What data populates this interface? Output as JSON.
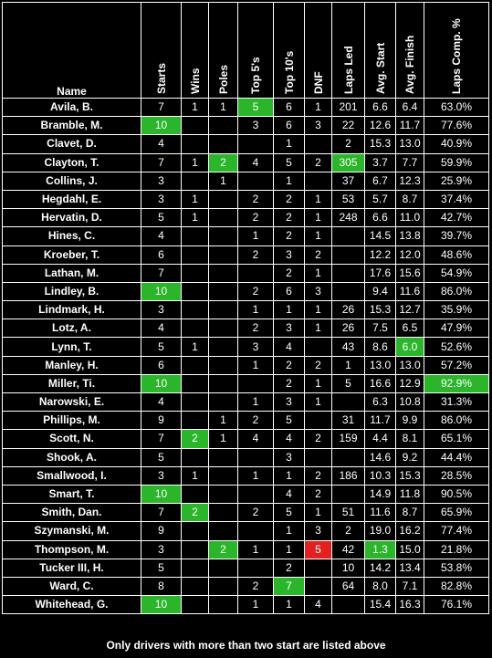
{
  "headers": [
    "Name",
    "Starts",
    "Wins",
    "Poles",
    "Top 5's",
    "Top 10's",
    "DNF",
    "Laps Led",
    "Avg. Start",
    "Avg. Finish",
    "Laps Comp. %"
  ],
  "rows": [
    [
      "Avila, B.",
      "7",
      "1",
      "1",
      "5",
      "6",
      "1",
      "201",
      "6.6",
      "6.4",
      "63.0%"
    ],
    [
      "Bramble, M.",
      "10",
      "",
      "",
      "3",
      "6",
      "3",
      "22",
      "12.6",
      "11.7",
      "77.6%"
    ],
    [
      "Clavet, D.",
      "4",
      "",
      "",
      "",
      "1",
      "",
      "2",
      "15.3",
      "13.0",
      "40.9%"
    ],
    [
      "Clayton, T.",
      "7",
      "1",
      "2",
      "4",
      "5",
      "2",
      "305",
      "3.7",
      "7.7",
      "59.9%"
    ],
    [
      "Collins, J.",
      "3",
      "",
      "1",
      "",
      "1",
      "",
      "37",
      "6.7",
      "12.3",
      "25.9%"
    ],
    [
      "Hegdahl, E.",
      "3",
      "1",
      "",
      "2",
      "2",
      "1",
      "53",
      "5.7",
      "8.7",
      "37.4%"
    ],
    [
      "Hervatin, D.",
      "5",
      "1",
      "",
      "2",
      "2",
      "1",
      "248",
      "6.6",
      "11.0",
      "42.7%"
    ],
    [
      "Hines, C.",
      "4",
      "",
      "",
      "1",
      "2",
      "1",
      "",
      "14.5",
      "13.8",
      "39.7%"
    ],
    [
      "Kroeber, T.",
      "6",
      "",
      "",
      "2",
      "3",
      "2",
      "",
      "12.2",
      "12.0",
      "48.6%"
    ],
    [
      "Lathan, M.",
      "7",
      "",
      "",
      "",
      "2",
      "1",
      "",
      "17.6",
      "15.6",
      "54.9%"
    ],
    [
      "Lindley, B.",
      "10",
      "",
      "",
      "2",
      "6",
      "3",
      "",
      "9.4",
      "11.6",
      "86.0%"
    ],
    [
      "Lindmark, H.",
      "3",
      "",
      "",
      "1",
      "1",
      "1",
      "26",
      "15.3",
      "12.7",
      "35.9%"
    ],
    [
      "Lotz, A.",
      "4",
      "",
      "",
      "2",
      "3",
      "1",
      "26",
      "7.5",
      "6.5",
      "47.9%"
    ],
    [
      "Lynn, T.",
      "5",
      "1",
      "",
      "3",
      "4",
      "",
      "43",
      "8.6",
      "6.0",
      "52.6%"
    ],
    [
      "Manley, H.",
      "6",
      "",
      "",
      "1",
      "2",
      "2",
      "1",
      "13.0",
      "13.0",
      "57.2%"
    ],
    [
      "Miller, Ti.",
      "10",
      "",
      "",
      "",
      "2",
      "1",
      "5",
      "16.6",
      "12.9",
      "92.9%"
    ],
    [
      "Narowski, E.",
      "4",
      "",
      "",
      "1",
      "3",
      "1",
      "",
      "6.3",
      "10.8",
      "31.3%"
    ],
    [
      "Phillips, M.",
      "9",
      "",
      "1",
      "2",
      "5",
      "",
      "31",
      "11.7",
      "9.9",
      "86.0%"
    ],
    [
      "Scott, N.",
      "7",
      "2",
      "1",
      "4",
      "4",
      "2",
      "159",
      "4.4",
      "8.1",
      "65.1%"
    ],
    [
      "Shook, A.",
      "5",
      "",
      "",
      "",
      "3",
      "",
      "",
      "14.6",
      "9.2",
      "44.4%"
    ],
    [
      "Smallwood, I.",
      "3",
      "1",
      "",
      "1",
      "1",
      "2",
      "186",
      "10.3",
      "15.3",
      "28.5%"
    ],
    [
      "Smart, T.",
      "10",
      "",
      "",
      "",
      "4",
      "2",
      "",
      "14.9",
      "11.8",
      "90.5%"
    ],
    [
      "Smith, Dan.",
      "7",
      "2",
      "",
      "2",
      "5",
      "1",
      "51",
      "11.6",
      "8.7",
      "65.9%"
    ],
    [
      "Szymanski, M.",
      "9",
      "",
      "",
      "",
      "1",
      "3",
      "2",
      "19.0",
      "16.2",
      "77.4%"
    ],
    [
      "Thompson, M.",
      "3",
      "",
      "2",
      "1",
      "1",
      "5",
      "42",
      "1.3",
      "15.0",
      "21.8%"
    ],
    [
      "Tucker III, H.",
      "5",
      "",
      "",
      "",
      "2",
      "",
      "10",
      "14.2",
      "13.4",
      "53.8%"
    ],
    [
      "Ward, C.",
      "8",
      "",
      "",
      "2",
      "7",
      "",
      "64",
      "8.0",
      "7.1",
      "82.8%"
    ],
    [
      "Whitehead, G.",
      "10",
      "",
      "",
      "1",
      "1",
      "4",
      "",
      "15.4",
      "16.3",
      "76.1%"
    ]
  ],
  "highlights": [
    {
      "row": 0,
      "col": 4,
      "color": "green"
    },
    {
      "row": 1,
      "col": 1,
      "color": "green"
    },
    {
      "row": 3,
      "col": 3,
      "color": "green"
    },
    {
      "row": 3,
      "col": 7,
      "color": "green"
    },
    {
      "row": 10,
      "col": 1,
      "color": "green"
    },
    {
      "row": 13,
      "col": 9,
      "color": "green"
    },
    {
      "row": 15,
      "col": 1,
      "color": "green"
    },
    {
      "row": 15,
      "col": 10,
      "color": "green"
    },
    {
      "row": 18,
      "col": 2,
      "color": "green"
    },
    {
      "row": 21,
      "col": 1,
      "color": "green"
    },
    {
      "row": 22,
      "col": 2,
      "color": "green"
    },
    {
      "row": 24,
      "col": 3,
      "color": "green"
    },
    {
      "row": 24,
      "col": 6,
      "color": "red"
    },
    {
      "row": 24,
      "col": 8,
      "color": "green"
    },
    {
      "row": 26,
      "col": 5,
      "color": "green"
    },
    {
      "row": 27,
      "col": 1,
      "color": "green"
    }
  ],
  "colors": {
    "highlight_green": "#2bb52b",
    "highlight_red": "#e32020",
    "background": "#000000",
    "text": "#ffffff"
  },
  "footer": "Only drivers with more than two start are listed above"
}
